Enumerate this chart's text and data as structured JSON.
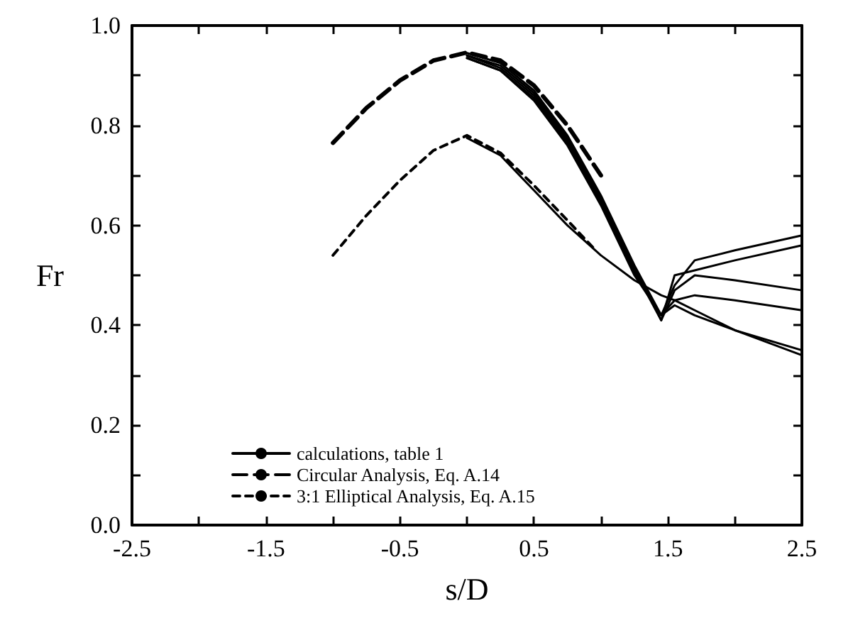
{
  "chart_data": {
    "type": "line",
    "xlabel": "s/D",
    "ylabel": "Fr",
    "xlim": [
      -2.5,
      2.5
    ],
    "ylim": [
      0,
      1
    ],
    "xticks": [
      -2.5,
      {
        "value": -2,
        "label": null
      },
      -1.5,
      {
        "value": -1,
        "label": null
      },
      -0.5,
      {
        "value": 0,
        "label": null
      },
      0.5,
      {
        "value": 1,
        "label": null
      },
      1.5,
      {
        "value": 2,
        "label": null
      },
      2.5
    ],
    "yticks": [
      {
        "value": 0,
        "label": "0.0"
      },
      {
        "value": 0.1,
        "label": null
      },
      0.2,
      {
        "value": 0.3,
        "label": null
      },
      0.4,
      {
        "value": 0.5,
        "label": null
      },
      0.6,
      {
        "value": 0.7,
        "label": null
      },
      0.8,
      {
        "value": 0.9,
        "label": null
      },
      {
        "value": 1,
        "label": "1.0"
      }
    ],
    "grid": false,
    "legend": "bottom left",
    "marker": "none",
    "series": [
      {
        "name": "calculations, table 1",
        "color": "#000000",
        "line_style": "solid",
        "x": [
          0,
          0.25,
          0.5,
          0.75,
          1.0,
          1.25,
          1.45,
          1.55,
          1.7,
          2.0,
          2.5
        ],
        "values": [
          0.945,
          0.925,
          0.87,
          0.78,
          0.66,
          0.52,
          0.42,
          0.48,
          0.53,
          0.55,
          0.58
        ]
      },
      {
        "color": "#000000",
        "line_style": "solid",
        "x": [
          0,
          0.25,
          0.5,
          0.75,
          1.0,
          1.25,
          1.45,
          1.55,
          1.7,
          2.0,
          2.5
        ],
        "values": [
          0.94,
          0.92,
          0.865,
          0.775,
          0.655,
          0.515,
          0.41,
          0.5,
          0.51,
          0.53,
          0.56
        ]
      },
      {
        "color": "#000000",
        "line_style": "solid",
        "x": [
          0,
          0.25,
          0.5,
          0.75,
          1.0,
          1.25,
          1.45,
          1.55,
          1.7,
          2.0,
          2.5
        ],
        "values": [
          0.94,
          0.915,
          0.86,
          0.77,
          0.65,
          0.51,
          0.41,
          0.47,
          0.5,
          0.49,
          0.47
        ]
      },
      {
        "color": "#000000",
        "line_style": "solid",
        "x": [
          0,
          0.25,
          0.5,
          0.75,
          1.0,
          1.25,
          1.45,
          1.55,
          1.7,
          2.0,
          2.5
        ],
        "values": [
          0.935,
          0.91,
          0.855,
          0.765,
          0.645,
          0.505,
          0.42,
          0.45,
          0.46,
          0.45,
          0.43
        ]
      },
      {
        "color": "#000000",
        "line_style": "solid",
        "x": [
          0,
          0.25,
          0.5,
          0.75,
          1.0,
          1.25,
          1.45,
          1.55,
          1.7,
          2.0,
          2.5
        ],
        "values": [
          0.935,
          0.91,
          0.85,
          0.76,
          0.64,
          0.5,
          0.42,
          0.44,
          0.42,
          0.39,
          0.34
        ]
      },
      {
        "color": "#000000",
        "line_style": "solid",
        "x": [
          0,
          0.25,
          0.5,
          0.75,
          1.0,
          1.25,
          1.45,
          1.55,
          1.7,
          2.0,
          2.5
        ],
        "values": [
          0.775,
          0.74,
          0.67,
          0.6,
          0.54,
          0.49,
          0.46,
          0.45,
          0.43,
          0.39,
          0.35
        ]
      },
      {
        "name": "Circular Analysis, Eq. A.14",
        "color": "#000000",
        "line_style": "dashed",
        "x": [
          -1,
          -0.75,
          -0.5,
          -0.25,
          0,
          0.25,
          0.5,
          0.75,
          1.0
        ],
        "values": [
          0.765,
          0.835,
          0.89,
          0.93,
          0.946,
          0.93,
          0.88,
          0.8,
          0.7
        ]
      },
      {
        "name": "3:1 Elliptical Analysis, Eq. A.15",
        "color": "#000000",
        "line_style": "dotted",
        "x": [
          -1,
          -0.75,
          -0.5,
          -0.25,
          0,
          0.25,
          0.5,
          0.75,
          0.96
        ],
        "values": [
          0.54,
          0.62,
          0.69,
          0.75,
          0.78,
          0.745,
          0.68,
          0.61,
          0.55
        ]
      }
    ]
  }
}
